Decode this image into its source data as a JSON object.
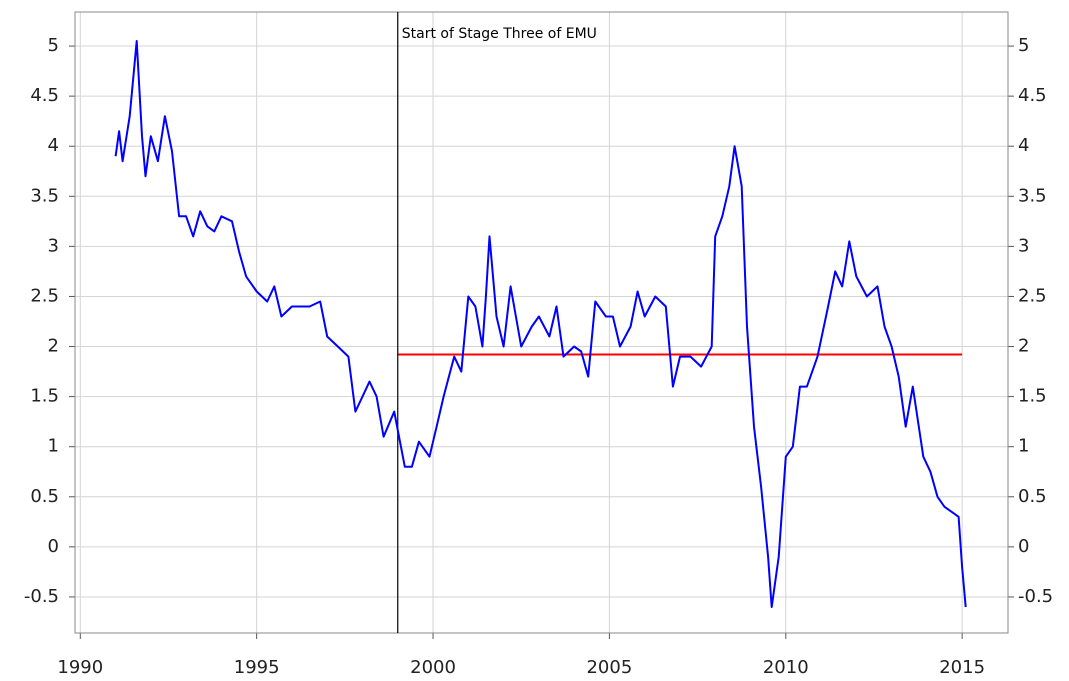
{
  "chart_data": {
    "type": "line",
    "x": [
      1991.0,
      1991.1,
      1991.2,
      1991.4,
      1991.6,
      1991.75,
      1991.85,
      1992.0,
      1992.2,
      1992.4,
      1992.6,
      1992.8,
      1993.0,
      1993.2,
      1993.4,
      1993.6,
      1993.8,
      1994.0,
      1994.3,
      1994.5,
      1994.7,
      1995.0,
      1995.3,
      1995.5,
      1995.7,
      1996.0,
      1996.5,
      1996.8,
      1997.0,
      1997.3,
      1997.6,
      1997.8,
      1998.0,
      1998.2,
      1998.4,
      1998.6,
      1998.9,
      1999.2,
      1999.4,
      1999.6,
      1999.9,
      2000.1,
      2000.3,
      2000.6,
      2000.8,
      2001.0,
      2001.2,
      2001.4,
      2001.5,
      2001.6,
      2001.8,
      2002.0,
      2002.2,
      2002.5,
      2002.8,
      2003.0,
      2003.3,
      2003.5,
      2003.7,
      2004.0,
      2004.2,
      2004.4,
      2004.6,
      2004.9,
      2005.1,
      2005.3,
      2005.6,
      2005.8,
      2006.0,
      2006.3,
      2006.6,
      2006.8,
      2007.0,
      2007.3,
      2007.6,
      2007.9,
      2008.0,
      2008.2,
      2008.4,
      2008.55,
      2008.75,
      2008.9,
      2009.1,
      2009.3,
      2009.5,
      2009.6,
      2009.8,
      2010.0,
      2010.2,
      2010.4,
      2010.6,
      2010.9,
      2011.2,
      2011.4,
      2011.6,
      2011.8,
      2012.0,
      2012.3,
      2012.6,
      2012.8,
      2013.0,
      2013.2,
      2013.4,
      2013.6,
      2013.9,
      2014.1,
      2014.3,
      2014.5,
      2014.7,
      2014.9,
      2015.0,
      2015.1
    ],
    "series": [
      {
        "color": "#0000ff",
        "values": [
          3.9,
          4.15,
          3.85,
          4.3,
          5.05,
          4.1,
          3.7,
          4.1,
          3.85,
          4.3,
          3.95,
          3.3,
          3.3,
          3.1,
          3.35,
          3.2,
          3.15,
          3.3,
          3.25,
          2.95,
          2.7,
          2.55,
          2.45,
          2.6,
          2.3,
          2.4,
          2.4,
          2.45,
          2.1,
          2.0,
          1.9,
          1.35,
          1.5,
          1.65,
          1.5,
          1.1,
          1.35,
          0.8,
          0.8,
          1.05,
          0.9,
          1.2,
          1.5,
          1.9,
          1.75,
          2.5,
          2.4,
          2.0,
          2.5,
          3.1,
          2.3,
          2.0,
          2.6,
          2.0,
          2.2,
          2.3,
          2.1,
          2.4,
          1.9,
          2.0,
          1.95,
          1.7,
          2.45,
          2.3,
          2.3,
          2.0,
          2.2,
          2.55,
          2.3,
          2.5,
          2.4,
          1.6,
          1.9,
          1.9,
          1.8,
          2.0,
          3.1,
          3.3,
          3.6,
          4.0,
          3.6,
          2.2,
          1.2,
          0.6,
          -0.1,
          -0.6,
          -0.1,
          0.9,
          1.0,
          1.6,
          1.6,
          1.9,
          2.4,
          2.75,
          2.6,
          3.05,
          2.7,
          2.5,
          2.6,
          2.2,
          2.0,
          1.7,
          1.2,
          1.6,
          0.9,
          0.75,
          0.5,
          0.4,
          0.35,
          0.3,
          -0.2,
          -0.6
        ]
      }
    ],
    "reference_line": {
      "y": 1.92,
      "x": [
        1999,
        2015
      ],
      "color": "#ff0000"
    },
    "annotations": [
      {
        "text": "Start of Stage Three of EMU",
        "x": 1999
      }
    ],
    "xlim": [
      1989.85,
      2016.3
    ],
    "xticks": [
      1990,
      1995,
      2000,
      2005,
      2010,
      2015
    ],
    "ylim": [
      -0.86,
      5.34
    ],
    "yticks": [
      -0.5,
      0,
      0.5,
      1,
      1.5,
      2,
      2.5,
      3,
      3.5,
      4,
      4.5,
      5
    ],
    "y2lim": [
      -0.86,
      5.34
    ],
    "y2ticks": [
      -0.5,
      0,
      0.5,
      1,
      1.5,
      2,
      2.5,
      3,
      3.5,
      4,
      4.5,
      5
    ],
    "grid": true
  }
}
